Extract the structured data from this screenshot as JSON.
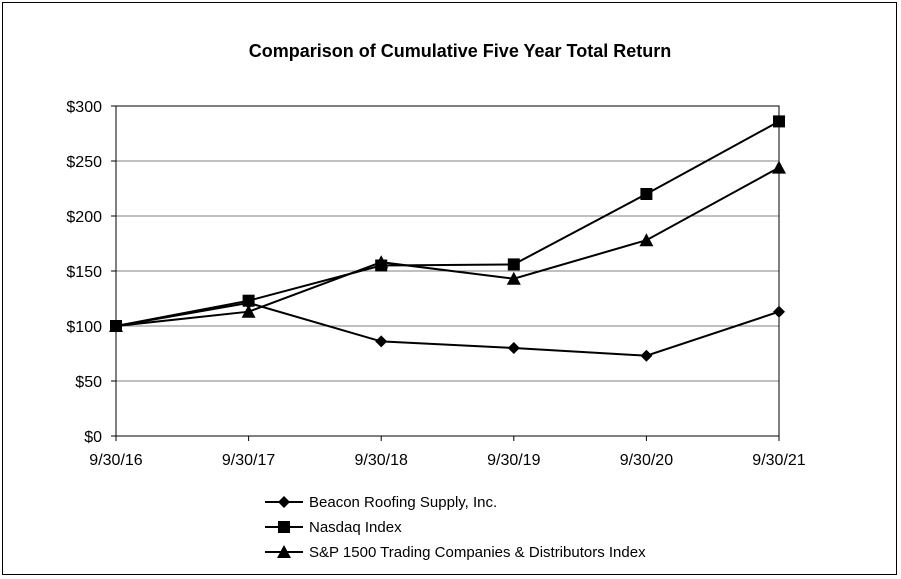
{
  "chart_data": {
    "type": "line",
    "title": "Comparison of Cumulative Five Year Total Return",
    "categories": [
      "9/30/16",
      "9/30/17",
      "9/30/18",
      "9/30/19",
      "9/30/20",
      "9/30/21"
    ],
    "y_ticks": [
      "$0",
      "$50",
      "$100",
      "$150",
      "$200",
      "$250",
      "$300"
    ],
    "ylim": [
      0,
      300
    ],
    "grid": true,
    "legend_position": "bottom",
    "series": [
      {
        "name": "Beacon Roofing Supply, Inc.",
        "marker": "diamond",
        "values": [
          100,
          121,
          86,
          80,
          73,
          113
        ]
      },
      {
        "name": "Nasdaq Index",
        "marker": "square",
        "values": [
          100,
          123,
          155,
          156,
          220,
          286
        ]
      },
      {
        "name": "S&P 1500 Trading Companies & Distributors Index",
        "marker": "triangle",
        "values": [
          100,
          113,
          158,
          143,
          178,
          244
        ]
      }
    ],
    "line_color": "#000000",
    "grid_color": "#808080"
  }
}
